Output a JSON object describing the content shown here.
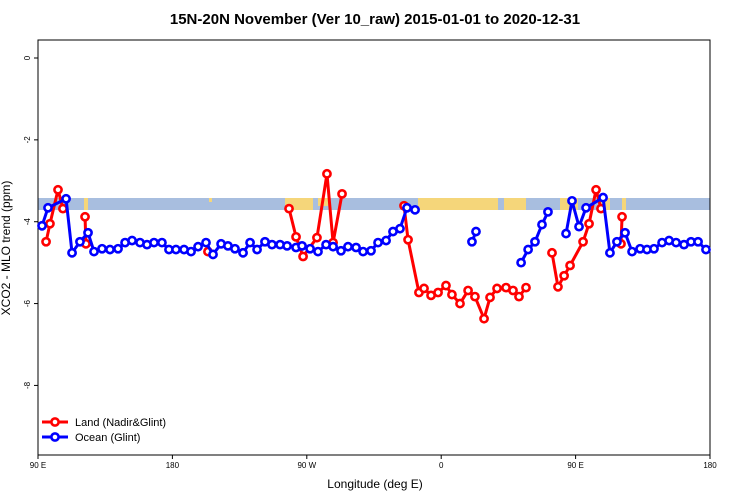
{
  "chart_data": {
    "type": "line",
    "title": "15N-20N November (Ver 10_raw)   2015-01-01 to 2020-12-31",
    "x_label": "Longitude (deg E)",
    "y_label": "XCO2 - MLO trend (ppm)",
    "xlim": [
      90,
      540
    ],
    "ylim": [
      -9.7,
      0.44
    ],
    "xticks": [
      {
        "value": 90,
        "label": "90 E"
      },
      {
        "value": 180,
        "label": "180"
      },
      {
        "value": 270,
        "label": "90 W"
      },
      {
        "value": 360,
        "label": "0"
      },
      {
        "value": 450,
        "label": "90 E"
      },
      {
        "value": 540,
        "label": "180"
      }
    ],
    "yticks": [
      0,
      -2,
      -4,
      -6,
      -8
    ],
    "legend": "bottom-left",
    "series": [
      {
        "name": "Land (Nadir&Glint)",
        "color": "#ff0000",
        "x": [
          95.4,
          98,
          103.4,
          106.7,
          null,
          121.5,
          122.1,
          null,
          203.8,
          null,
          258.1,
          262.8,
          267.5,
          276.8,
          283.5,
          287.6,
          293.6,
          null,
          335.1,
          337.8,
          345.1,
          348.5,
          353.2,
          357.9,
          363.2,
          367.2,
          372.6,
          378,
          382.6,
          388.7,
          392.7,
          397.4,
          403.4,
          408.1,
          412.1,
          416.8,
          null,
          434.2,
          438.2,
          442.3,
          446.3,
          455,
          459,
          463.7,
          467,
          null,
          481.1,
          480.4
        ],
        "values": [
          -4.49,
          -4.05,
          -3.22,
          -3.68,
          null,
          -3.88,
          -4.54,
          null,
          -4.73,
          null,
          -3.68,
          -4.37,
          -4.85,
          -4.39,
          -2.83,
          -4.51,
          -3.32,
          null,
          -3.61,
          -4.44,
          -5.73,
          -5.63,
          -5.8,
          -5.73,
          -5.56,
          -5.78,
          -6.0,
          -5.68,
          -5.83,
          -6.37,
          -5.85,
          -5.63,
          -5.61,
          -5.68,
          -5.83,
          -5.61,
          null,
          -4.76,
          -5.59,
          -5.32,
          -5.07,
          -4.49,
          -4.05,
          -3.22,
          -3.68,
          null,
          -3.88,
          -4.54
        ]
      },
      {
        "name": "Ocean (Glint)",
        "color": "#0000ff",
        "x": [
          92.7,
          96.7,
          108.8,
          112.8,
          118.1,
          123.5,
          127.5,
          132.9,
          138.2,
          143.6,
          148.3,
          153,
          158.3,
          163,
          167.7,
          173,
          177.7,
          182.4,
          187.8,
          192.5,
          197.2,
          202.5,
          207.2,
          212.6,
          217.2,
          221.9,
          227.3,
          232,
          236.7,
          242,
          246.7,
          252.1,
          256.8,
          262.8,
          266.8,
          272.2,
          277.5,
          282.9,
          287.6,
          292.9,
          297.6,
          303,
          307.7,
          313,
          317.7,
          323.1,
          327.7,
          332.4,
          337.1,
          342.5,
          null,
          380.6,
          383.3,
          null,
          413.5,
          418.2,
          422.8,
          427.5,
          431.5,
          null,
          443.6,
          447.6,
          452.3,
          457,
          468.4,
          473,
          477.7,
          483.1,
          487.8,
          493.2,
          497.8,
          502.5,
          507.9,
          512.6,
          517.3,
          522.6,
          527.3,
          532,
          537.3
        ],
        "values": [
          -4.1,
          -3.66,
          -3.44,
          -4.76,
          -4.49,
          -4.27,
          -4.73,
          -4.66,
          -4.68,
          -4.66,
          -4.51,
          -4.46,
          -4.51,
          -4.56,
          -4.51,
          -4.51,
          -4.68,
          -4.68,
          -4.68,
          -4.73,
          -4.61,
          -4.51,
          -4.8,
          -4.54,
          -4.59,
          -4.66,
          -4.76,
          -4.51,
          -4.68,
          -4.49,
          -4.56,
          -4.56,
          -4.59,
          -4.63,
          -4.59,
          -4.66,
          -4.73,
          -4.56,
          -4.61,
          -4.71,
          -4.61,
          -4.63,
          -4.73,
          -4.71,
          -4.51,
          -4.46,
          -4.24,
          -4.17,
          -3.66,
          -3.71,
          null,
          -4.49,
          -4.24,
          null,
          -5.0,
          -4.68,
          -4.49,
          -4.07,
          -3.76,
          null,
          -4.29,
          -3.49,
          -4.12,
          -3.66,
          -3.41,
          -4.76,
          -4.49,
          -4.27,
          -4.73,
          -4.66,
          -4.68,
          -4.66,
          -4.51,
          -4.46,
          -4.51,
          -4.56,
          -4.49,
          -4.49,
          -4.68
        ]
      }
    ]
  }
}
